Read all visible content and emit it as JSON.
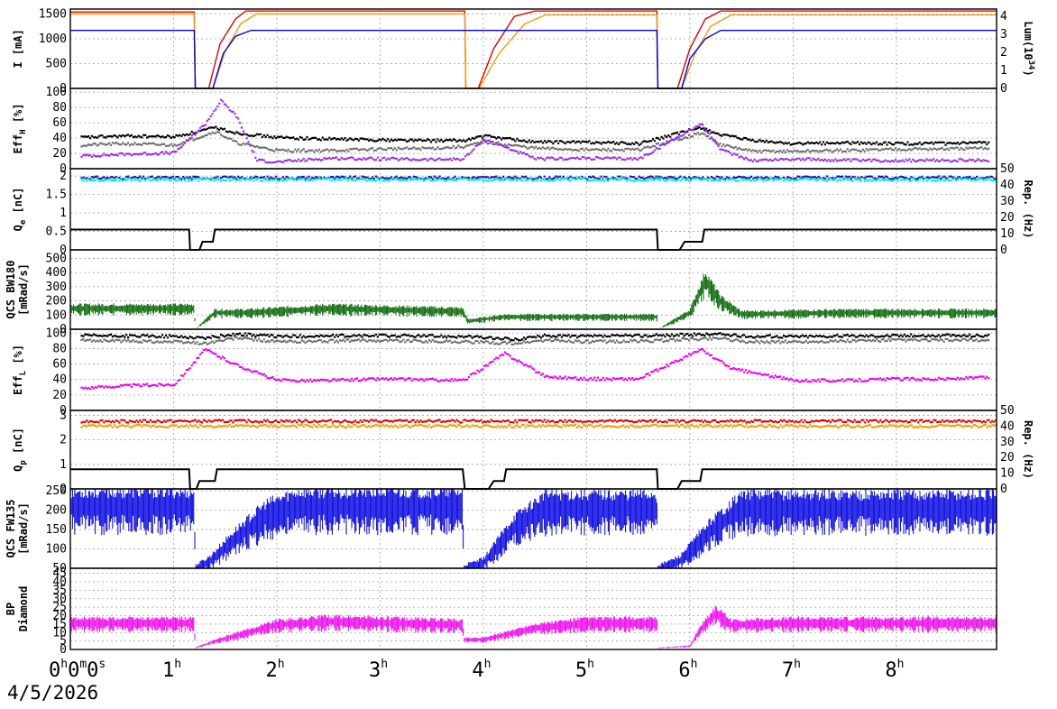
{
  "footer": {
    "date": "4/5/2026"
  },
  "x_axis": {
    "ticks": [
      {
        "main": "0",
        "sup": "h",
        "extra": "0",
        "sup2": "m",
        "extra2": "0",
        "sup3": "s",
        "t": 0
      },
      {
        "main": "1",
        "sup": "h",
        "t": 1
      },
      {
        "main": "2",
        "sup": "h",
        "t": 2
      },
      {
        "main": "3",
        "sup": "h",
        "t": 3
      },
      {
        "main": "4",
        "sup": "h",
        "t": 4
      },
      {
        "main": "5",
        "sup": "h",
        "t": 5
      },
      {
        "main": "6",
        "sup": "h",
        "t": 6
      },
      {
        "main": "7",
        "sup": "h",
        "t": 7
      },
      {
        "main": "8",
        "sup": "h",
        "t": 8
      }
    ],
    "range_hours": [
      0,
      8.97
    ]
  },
  "colors": {
    "orange": "#f0a000",
    "red": "#e00000",
    "blue": "#0000e0",
    "black": "#000000",
    "gray": "#707070",
    "purple": "#9a30e6",
    "cyan": "#00e8f0",
    "navy": "#1a1aa0",
    "green": "#006400",
    "magenta": "#f000f0",
    "grid": "#a0a0a0"
  },
  "chart_data": [
    {
      "type": "line",
      "panel": "current-luminosity",
      "ylabel_main": "I [mA]",
      "ylabel_right": "Lum(10",
      "ylabel_right_sup": "34",
      "ylabel_right_end": ")",
      "ylim": [
        0,
        1600
      ],
      "yticks": [
        "0",
        "500",
        "1000",
        "1500"
      ],
      "yticks_right": [
        "0",
        "1",
        "2",
        "3",
        "4"
      ],
      "ylim_right": [
        0,
        4.4
      ],
      "series": [
        {
          "color_key": "red",
          "x": [
            0,
            1.2,
            1.21,
            1.34,
            1.45,
            1.6,
            1.7,
            3.82,
            3.83,
            3.95,
            4.1,
            4.3,
            4.5,
            5.68,
            5.69,
            5.88,
            6.0,
            6.15,
            6.3,
            8.97
          ],
          "y": [
            1540,
            1540,
            0,
            0,
            900,
            1400,
            1560,
            1560,
            0,
            0,
            800,
            1450,
            1560,
            1560,
            0,
            0,
            800,
            1400,
            1560,
            1560
          ]
        },
        {
          "color_key": "orange",
          "x": [
            0,
            1.2,
            1.21,
            1.38,
            1.5,
            1.65,
            1.8,
            3.82,
            3.83,
            3.96,
            4.15,
            4.4,
            4.6,
            5.68,
            5.69,
            5.92,
            6.05,
            6.2,
            6.4,
            8.97
          ],
          "y": [
            1500,
            1500,
            0,
            0,
            750,
            1300,
            1500,
            1500,
            0,
            0,
            700,
            1300,
            1480,
            1480,
            0,
            0,
            700,
            1250,
            1480,
            1480
          ]
        },
        {
          "color_key": "blue",
          "x": [
            0,
            1.2,
            1.21,
            1.38,
            1.48,
            1.6,
            1.75,
            3.82,
            3.83,
            5.68,
            5.69,
            5.92,
            6.0,
            6.15,
            6.3,
            8.97
          ],
          "y": [
            1170,
            1170,
            0,
            0,
            700,
            1050,
            1170,
            1170,
            1170,
            1170,
            0,
            0,
            600,
            1000,
            1170,
            1170
          ]
        }
      ]
    },
    {
      "type": "scatter",
      "panel": "eff-h",
      "ylabel_main": "Eff",
      "ylabel_sub": "H",
      "ylabel_end": " [%]",
      "ylim": [
        0,
        105
      ],
      "yticks": [
        "0",
        "20",
        "40",
        "60",
        "80",
        "100"
      ],
      "series": [
        {
          "color_key": "black",
          "x": [
            0.1,
            0.5,
            1.0,
            1.4,
            1.6,
            2.0,
            2.5,
            3.0,
            3.5,
            3.8,
            4.0,
            4.5,
            5.0,
            5.5,
            6.1,
            6.3,
            6.6,
            7.0,
            7.5,
            8.0,
            8.5,
            8.9
          ],
          "y": [
            42,
            44,
            43,
            55,
            48,
            42,
            40,
            39,
            38,
            38,
            44,
            36,
            36,
            34,
            55,
            45,
            38,
            34,
            35,
            34,
            34,
            35
          ]
        },
        {
          "color_key": "gray",
          "x": [
            0.1,
            0.5,
            1.0,
            1.4,
            1.6,
            2.0,
            2.5,
            3.0,
            3.5,
            3.8,
            4.0,
            4.5,
            5.0,
            5.5,
            6.1,
            6.3,
            6.6,
            7.0,
            7.5,
            8.0,
            8.5,
            8.9
          ],
          "y": [
            32,
            34,
            32,
            50,
            35,
            25,
            25,
            27,
            28,
            30,
            36,
            28,
            26,
            26,
            48,
            32,
            24,
            24,
            25,
            27,
            27,
            28
          ]
        },
        {
          "color_key": "purple",
          "x": [
            0.1,
            0.5,
            1.0,
            1.3,
            1.45,
            1.6,
            1.8,
            2.0,
            2.5,
            3.0,
            3.5,
            3.8,
            4.0,
            4.5,
            5.0,
            5.5,
            6.1,
            6.3,
            6.6,
            7.0,
            7.5,
            8.0,
            8.5,
            8.9
          ],
          "y": [
            18,
            20,
            22,
            60,
            90,
            70,
            12,
            10,
            15,
            14,
            13,
            14,
            40,
            14,
            15,
            14,
            60,
            25,
            12,
            14,
            12,
            12,
            12,
            12
          ]
        }
      ]
    },
    {
      "type": "scatter",
      "panel": "charge-e",
      "ylabel_main": "Q",
      "ylabel_sub": "e",
      "ylabel_end": " [nC]",
      "ylim": [
        0,
        2.2
      ],
      "yticks": [
        "0",
        "0.5",
        "1",
        "1.5",
        "2"
      ],
      "ylabel_right": "Rep. (Hz)",
      "yticks_right": [
        "0",
        "10",
        "20",
        "30",
        "40",
        "50"
      ],
      "ylim_right": [
        0,
        50
      ],
      "series": [
        {
          "color_key": "navy",
          "x": [
            0.1,
            1.2,
            1.25,
            3.8,
            3.9,
            5.68,
            5.7,
            8.97
          ],
          "y": [
            1.98,
            1.98,
            1.98,
            1.98,
            1.98,
            1.98,
            1.98,
            1.98
          ]
        },
        {
          "color_key": "cyan",
          "x": [
            0.1,
            1.2,
            1.25,
            3.8,
            3.9,
            5.68,
            5.7,
            8.97
          ],
          "y": [
            1.93,
            1.93,
            1.93,
            1.93,
            1.93,
            1.93,
            1.93,
            1.93
          ]
        }
      ],
      "rep_rate": {
        "color_key": "black",
        "x": [
          0,
          1.15,
          1.16,
          1.25,
          1.28,
          1.38,
          1.4,
          5.68,
          5.69,
          5.9,
          5.95,
          6.12,
          6.14,
          8.97
        ],
        "y": [
          12.5,
          12.5,
          0,
          0,
          5,
          5,
          12.5,
          12.5,
          0,
          0,
          5,
          5,
          12.5,
          12.5
        ]
      }
    },
    {
      "type": "area",
      "panel": "qcs-bw180",
      "ylabel_main": "QCS BW180",
      "ylabel_line2": "[mRad/s]",
      "ylim": [
        0,
        560
      ],
      "yticks": [
        "0",
        "100",
        "200",
        "300",
        "400",
        "500"
      ],
      "series": [
        {
          "color_key": "green",
          "x": [
            0,
            1.2,
            1.21,
            1.4,
            1.7,
            2.5,
            3.8,
            3.85,
            4.2,
            5.68,
            5.69,
            6.0,
            6.15,
            6.3,
            6.5,
            7.5,
            8.97
          ],
          "y": [
            150,
            150,
            0,
            120,
            120,
            150,
            130,
            60,
            90,
            90,
            0,
            120,
            350,
            200,
            110,
            120,
            120
          ]
        }
      ]
    },
    {
      "type": "scatter",
      "panel": "eff-l",
      "ylabel_main": "Eff",
      "ylabel_sub": "L",
      "ylabel_end": " [%]",
      "ylim": [
        0,
        105
      ],
      "yticks": [
        "0",
        "20",
        "40",
        "60",
        "80",
        "100"
      ],
      "series": [
        {
          "color_key": "black",
          "x": [
            0.1,
            1.0,
            1.3,
            1.6,
            2.0,
            3.0,
            3.8,
            4.3,
            4.6,
            5.0,
            5.6,
            6.3,
            6.5,
            7.0,
            8.0,
            8.9
          ],
          "y": [
            98,
            97,
            95,
            100,
            97,
            98,
            97,
            93,
            98,
            97,
            98,
            100,
            97,
            97,
            98,
            98
          ]
        },
        {
          "color_key": "gray",
          "x": [
            0.1,
            1.0,
            1.3,
            1.6,
            2.0,
            3.0,
            3.8,
            4.3,
            4.6,
            5.0,
            5.6,
            6.3,
            6.5,
            7.0,
            8.0,
            8.9
          ],
          "y": [
            92,
            90,
            88,
            95,
            90,
            92,
            90,
            88,
            92,
            90,
            91,
            95,
            90,
            90,
            92,
            92
          ]
        },
        {
          "color_key": "magenta",
          "x": [
            0.1,
            0.5,
            1.0,
            1.3,
            1.6,
            2.0,
            2.5,
            3.0,
            3.8,
            4.2,
            4.6,
            5.0,
            5.5,
            6.1,
            6.4,
            6.8,
            7.0,
            7.5,
            8.0,
            8.5,
            8.9
          ],
          "y": [
            30,
            33,
            35,
            80,
            60,
            40,
            40,
            42,
            40,
            75,
            45,
            42,
            42,
            80,
            55,
            45,
            40,
            40,
            42,
            42,
            44
          ]
        }
      ]
    },
    {
      "type": "scatter",
      "panel": "charge-p",
      "ylabel_main": "Q",
      "ylabel_sub": "p",
      "ylabel_end": " [nC]",
      "ylim": [
        0,
        3.2
      ],
      "yticks": [
        "0",
        "1",
        "2",
        "3"
      ],
      "ylabel_right": "Rep. (Hz)",
      "yticks_right": [
        "0",
        "10",
        "20",
        "30",
        "40",
        "50"
      ],
      "ylim_right": [
        0,
        50
      ],
      "series": [
        {
          "color_key": "red",
          "x": [
            0.1,
            1.2,
            1.25,
            3.8,
            4.05,
            5.68,
            5.72,
            8.97
          ],
          "y": [
            2.8,
            2.8,
            2.8,
            2.8,
            2.8,
            2.8,
            2.8,
            2.8
          ]
        },
        {
          "color_key": "orange",
          "x": [
            0.1,
            1.2,
            1.25,
            3.8,
            4.05,
            5.68,
            5.72,
            8.97
          ],
          "y": [
            2.6,
            2.6,
            2.6,
            2.6,
            2.6,
            2.6,
            2.6,
            2.6
          ]
        }
      ],
      "rep_rate": {
        "color_key": "black",
        "x": [
          0,
          1.15,
          1.16,
          1.22,
          1.25,
          1.4,
          1.42,
          3.8,
          3.82,
          4.05,
          4.1,
          4.2,
          4.22,
          5.68,
          5.69,
          5.88,
          5.92,
          6.1,
          6.12,
          8.97
        ],
        "y": [
          12.5,
          12.5,
          0,
          0,
          5,
          5,
          12.5,
          12.5,
          0,
          0,
          5,
          5,
          12.5,
          12.5,
          0,
          0,
          5,
          5,
          12.5,
          12.5
        ]
      }
    },
    {
      "type": "area",
      "panel": "qcs-fw135",
      "ylabel_main": "QCS FW135",
      "ylabel_line2": "[mRad/s]",
      "ylim": [
        50,
        255
      ],
      "yticks": [
        "50",
        "100",
        "150",
        "200",
        "250"
      ],
      "series": [
        {
          "color_key": "blue",
          "x": [
            0,
            1.2,
            1.21,
            1.35,
            1.6,
            1.9,
            2.2,
            3.8,
            3.81,
            4.0,
            4.3,
            4.6,
            5.68,
            5.69,
            5.9,
            6.2,
            6.5,
            8.97
          ],
          "y": [
            215,
            215,
            50,
            70,
            130,
            190,
            215,
            215,
            50,
            65,
            160,
            210,
            210,
            50,
            70,
            150,
            210,
            210
          ]
        }
      ]
    },
    {
      "type": "area",
      "panel": "bp-diamond",
      "ylabel_main": "BP",
      "ylabel_line2": "Diamond",
      "ylim": [
        0,
        48
      ],
      "yticks": [
        "0",
        "5",
        "10",
        "15",
        "20",
        "25",
        "30",
        "35",
        "40",
        "45"
      ],
      "series": [
        {
          "color_key": "magenta",
          "x": [
            0,
            1.2,
            1.21,
            1.4,
            1.7,
            2.0,
            2.5,
            3.8,
            3.81,
            4.0,
            4.5,
            5.0,
            5.68,
            5.69,
            6.0,
            6.1,
            6.25,
            6.4,
            7.0,
            8.97
          ],
          "y": [
            16,
            16,
            1,
            5,
            10,
            15,
            17,
            15,
            6,
            6,
            13,
            16,
            16,
            1,
            2,
            12,
            22,
            15,
            16,
            16
          ]
        }
      ]
    }
  ]
}
